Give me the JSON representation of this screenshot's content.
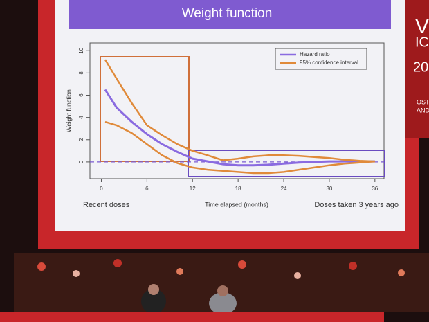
{
  "chart_data": {
    "type": "line",
    "title": "Weight function",
    "x_label": "Time elapsed (months)",
    "y_label": "Weight function",
    "left_note": "Recent doses",
    "right_note": "Doses taken 3 years ago",
    "x": [
      0.5,
      2,
      4,
      6,
      8,
      10,
      12,
      14,
      16,
      18,
      20,
      22,
      24,
      26,
      28,
      30,
      32,
      34,
      36
    ],
    "series": [
      {
        "name": "Hazard ratio",
        "color": "#8a6be0",
        "values": [
          6.5,
          4.9,
          3.6,
          2.5,
          1.6,
          0.9,
          0.3,
          0.05,
          -0.2,
          -0.3,
          -0.3,
          -0.25,
          -0.15,
          -0.05,
          0,
          0.05,
          0.05,
          0.05,
          0.05
        ]
      },
      {
        "name": "95% confidence interval",
        "color": "#e08a3a",
        "values": [
          9.2,
          7.5,
          5.3,
          3.3,
          2.4,
          1.6,
          1.0,
          0.6,
          0.15,
          0.3,
          0.5,
          0.6,
          0.6,
          0.55,
          0.45,
          0.35,
          0.2,
          0.1,
          0.05
        ],
        "lower": [
          3.6,
          3.3,
          2.6,
          1.6,
          0.6,
          -0.1,
          -0.5,
          -0.7,
          -0.8,
          -0.9,
          -1.0,
          -1.0,
          -0.9,
          -0.7,
          -0.5,
          -0.3,
          -0.15,
          -0.05,
          0.05
        ]
      }
    ],
    "xlim": [
      -1.5,
      37.2
    ],
    "ylim": [
      -1.5,
      10.7
    ],
    "xticks": [
      0,
      6,
      12,
      18,
      24,
      30,
      36
    ],
    "yticks": [
      0,
      2,
      4,
      6,
      8,
      10
    ],
    "reference_line": 0
  },
  "side_text": [
    "V",
    "IC",
    "20",
    "OST",
    "AND"
  ]
}
